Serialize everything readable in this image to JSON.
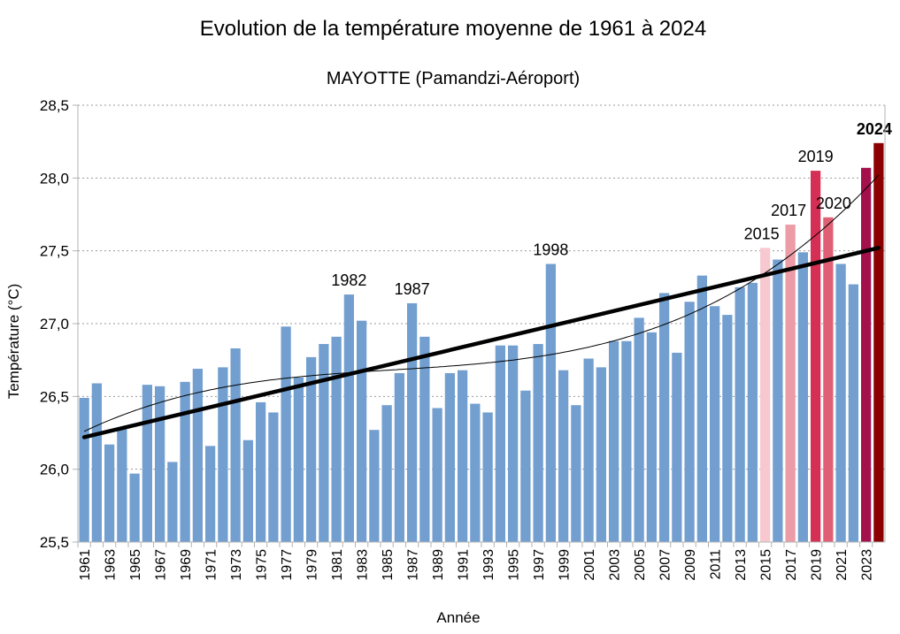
{
  "chart_data": {
    "type": "bar",
    "title": "Evolution de la température moyenne de 1961 à 2024",
    "subtitle": "MAYOTTE (Pamandzi-Aéroport)",
    "xlabel": "Année",
    "ylabel": "Température (°C)",
    "ylim": [
      25.5,
      28.5
    ],
    "yticks": [
      "25,5",
      "26,0",
      "26,5",
      "27,0",
      "27,5",
      "28,0",
      "28,5"
    ],
    "ytick_values": [
      25.5,
      26.0,
      26.5,
      27.0,
      27.5,
      28.0,
      28.5
    ],
    "grid": "horizontal dotted",
    "years": [
      1961,
      1962,
      1963,
      1964,
      1965,
      1966,
      1967,
      1968,
      1969,
      1970,
      1971,
      1972,
      1973,
      1974,
      1975,
      1976,
      1977,
      1978,
      1979,
      1980,
      1981,
      1982,
      1983,
      1984,
      1985,
      1986,
      1987,
      1988,
      1989,
      1990,
      1991,
      1992,
      1993,
      1994,
      1995,
      1996,
      1997,
      1998,
      1999,
      2000,
      2001,
      2002,
      2003,
      2004,
      2005,
      2006,
      2007,
      2008,
      2009,
      2010,
      2011,
      2012,
      2013,
      2014,
      2015,
      2016,
      2017,
      2018,
      2019,
      2020,
      2021,
      2022,
      2023,
      2024
    ],
    "values": [
      26.49,
      26.59,
      26.17,
      26.28,
      25.97,
      26.58,
      26.57,
      26.05,
      26.6,
      26.69,
      26.16,
      26.7,
      26.83,
      26.2,
      26.46,
      26.39,
      26.98,
      26.63,
      26.77,
      26.86,
      26.91,
      27.2,
      27.02,
      26.27,
      26.44,
      26.66,
      27.14,
      26.91,
      26.42,
      26.66,
      26.68,
      26.45,
      26.39,
      26.85,
      26.85,
      26.54,
      26.86,
      27.41,
      26.68,
      26.44,
      26.76,
      26.7,
      26.88,
      26.88,
      27.04,
      26.94,
      27.21,
      26.8,
      27.15,
      27.33,
      27.12,
      27.06,
      27.25,
      27.28,
      27.52,
      27.44,
      27.68,
      27.49,
      28.05,
      27.73,
      27.41,
      27.27,
      28.07,
      28.24
    ],
    "default_color": "#729fcf",
    "highlight_colors": {
      "2015": "#f7c8cf",
      "2017": "#ec9ca6",
      "2019": "#d62f55",
      "2020": "#e05f74",
      "2023": "#a3104c",
      "2024": "#8b0000"
    },
    "annotations": [
      {
        "year": 1982,
        "label": "1982",
        "bold": false
      },
      {
        "year": 1987,
        "label": "1987",
        "bold": false
      },
      {
        "year": 1998,
        "label": "1998",
        "bold": false
      },
      {
        "year": 2015,
        "label": "2015",
        "bold": false
      },
      {
        "year": 2017,
        "label": "2017",
        "bold": false
      },
      {
        "year": 2019,
        "label": "2019",
        "bold": false
      },
      {
        "year": 2020,
        "label": "2020",
        "bold": false
      },
      {
        "year": 2024,
        "label": "2024",
        "bold": true
      }
    ],
    "linear_trend": {
      "start": [
        1961,
        26.22
      ],
      "end": [
        2024,
        27.52
      ]
    },
    "poly_trend": [
      [
        1961,
        26.26
      ],
      [
        1980,
        26.65
      ],
      [
        2000,
        26.82
      ],
      [
        2024,
        28.02
      ]
    ]
  }
}
